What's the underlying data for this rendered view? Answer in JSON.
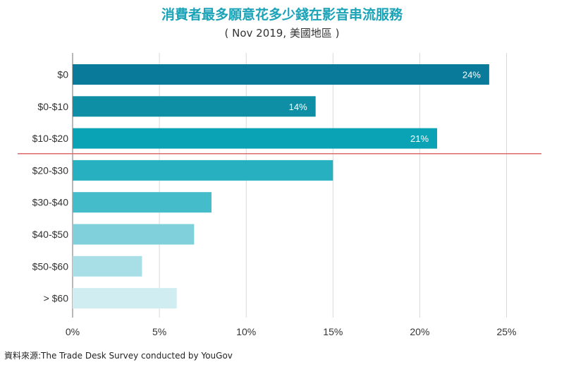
{
  "header": {
    "title": "消費者最多願意花多少錢在影音串流服務",
    "subtitle": "( Nov 2019, 美國地區 )"
  },
  "footer": {
    "source": "資料來源:The Trade Desk Survey conducted by YouGov"
  },
  "chart_data": {
    "type": "bar",
    "orientation": "horizontal",
    "categories": [
      "$0",
      "$0-$10",
      "$10-$20",
      "$20-$30",
      "$30-$40",
      "$40-$50",
      "$50-$60",
      "> $60"
    ],
    "values": [
      24,
      14,
      21,
      15,
      8,
      7,
      4,
      6
    ],
    "data_labels": [
      "24%",
      "14%",
      "21%",
      "",
      "",
      "",
      "",
      ""
    ],
    "bar_colors": [
      "#0a7a9a",
      "#0e8fa6",
      "#0aa3b5",
      "#26b0c0",
      "#45bcca",
      "#7fd0da",
      "#a8dfe6",
      "#d0eef1"
    ],
    "xlim": [
      0,
      27
    ],
    "xticks": [
      0,
      5,
      10,
      15,
      20,
      25
    ],
    "xtick_labels": [
      "0%",
      "5%",
      "10%",
      "15%",
      "20%",
      "25%"
    ],
    "grid": "vertical",
    "reference_line_color": "#e06a6a",
    "title": "消費者最多願意花多少錢在影音串流服務",
    "xlabel": "",
    "ylabel": ""
  }
}
